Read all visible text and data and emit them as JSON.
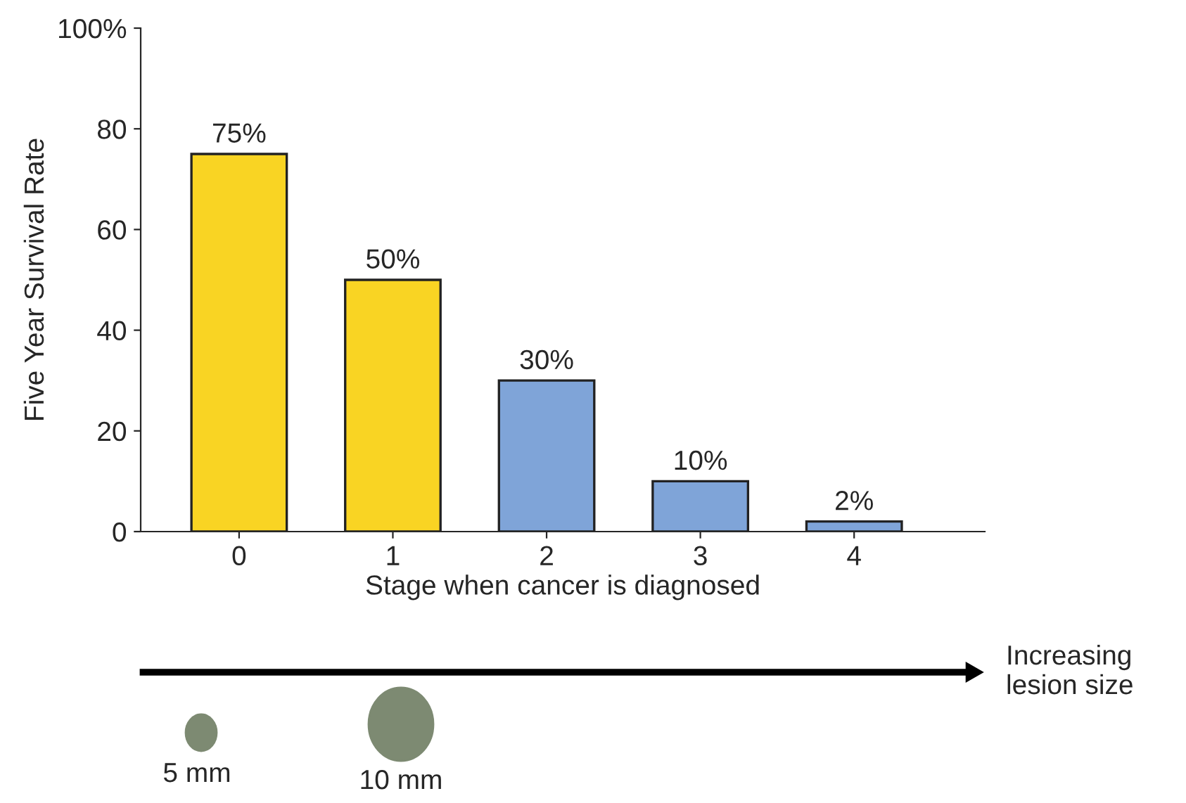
{
  "chart_data": {
    "type": "bar",
    "ylabel": "Five Year Survival Rate",
    "xlabel": "Stage when cancer is diagnosed",
    "categories": [
      "0",
      "1",
      "2",
      "3",
      "4"
    ],
    "values": [
      75,
      50,
      30,
      10,
      2
    ],
    "value_labels": [
      "75%",
      "50%",
      "30%",
      "10%",
      "2%"
    ],
    "colors": [
      "#f9d423",
      "#f9d423",
      "#7fa4d8",
      "#7fa4d8",
      "#7fa4d8"
    ],
    "ylim": [
      0,
      100
    ],
    "yticks": [
      0,
      20,
      40,
      60,
      80,
      {
        "value": 100,
        "label": "100%"
      }
    ],
    "grid": false,
    "legend": false,
    "annotations": [
      "Increasing\nlesion size",
      "5 mm",
      "10 mm"
    ]
  }
}
